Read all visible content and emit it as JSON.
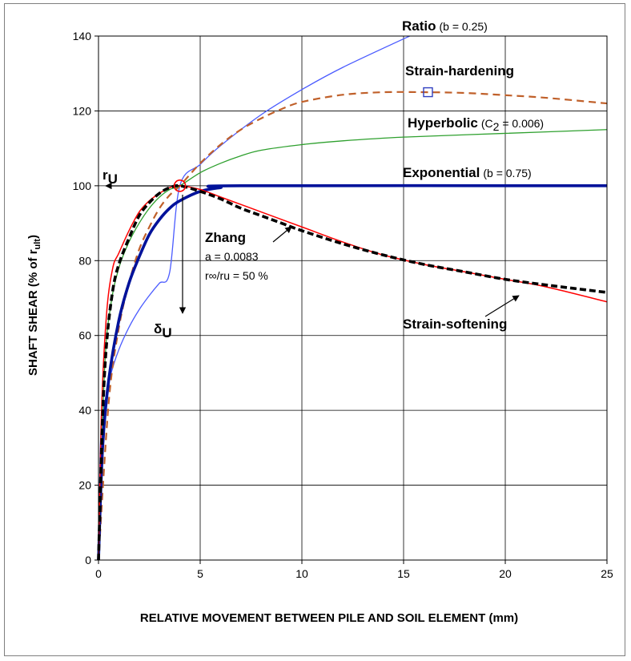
{
  "chart_data": {
    "type": "line",
    "xlabel": "RELATIVE MOVEMENT BETWEEN PILE AND SOIL ELEMENT  (mm)",
    "ylabel_main": "SHAFT SHEAR (% of r",
    "ylabel_sub": "ult",
    "ylabel_end": ")",
    "xlim": [
      0,
      25
    ],
    "ylim": [
      0,
      140
    ],
    "x_ticks": [
      "0",
      "5",
      "10",
      "15",
      "20",
      "25"
    ],
    "y_ticks": [
      "0",
      "20",
      "40",
      "60",
      "80",
      "100",
      "120",
      "140"
    ],
    "grid": true,
    "legend": "none",
    "series": [
      {
        "name": "Ratio (b = 0.25)",
        "color": "#4a5bff",
        "points": [
          [
            0,
            0
          ],
          [
            0.1,
            31.6
          ],
          [
            0.3,
            41.6
          ],
          [
            0.6,
            49.5
          ],
          [
            1,
            56.2
          ],
          [
            1.5,
            62.2
          ],
          [
            2,
            66.9
          ],
          [
            2.5,
            70.7
          ],
          [
            3,
            74.0
          ],
          [
            3.5,
            76.9
          ],
          [
            4,
            100
          ],
          [
            5,
            105.7
          ],
          [
            6,
            110.7
          ],
          [
            8,
            119.0
          ],
          [
            10,
            125.7
          ],
          [
            12,
            131.6
          ],
          [
            15.3,
            140
          ]
        ]
      },
      {
        "name": "Strain-hardening",
        "color": "#c0602a",
        "points": [
          [
            0,
            0
          ],
          [
            0.5,
            42
          ],
          [
            1,
            62
          ],
          [
            1.5,
            74
          ],
          [
            2,
            83
          ],
          [
            2.5,
            89
          ],
          [
            3,
            94
          ],
          [
            3.5,
            97.5
          ],
          [
            4,
            100
          ],
          [
            5,
            106
          ],
          [
            6,
            111
          ],
          [
            7,
            115
          ],
          [
            8,
            118
          ],
          [
            9,
            120.5
          ],
          [
            10,
            122.4
          ],
          [
            12,
            124.3
          ],
          [
            14,
            125
          ],
          [
            16,
            125
          ],
          [
            18,
            124.8
          ],
          [
            20,
            124.2
          ],
          [
            22,
            123.5
          ],
          [
            25,
            122
          ]
        ]
      },
      {
        "name": "Hyperbolic (C2 = 0.006)",
        "color": "#2ea02e",
        "points": [
          [
            0,
            0
          ],
          [
            0.3,
            51
          ],
          [
            0.6,
            68
          ],
          [
            1,
            78
          ],
          [
            1.5,
            85
          ],
          [
            2,
            90
          ],
          [
            2.5,
            94
          ],
          [
            3,
            97
          ],
          [
            3.5,
            99
          ],
          [
            4,
            100
          ],
          [
            5,
            103.5
          ],
          [
            6,
            106
          ],
          [
            7,
            108
          ],
          [
            8,
            109.5
          ],
          [
            10,
            111
          ],
          [
            12,
            112
          ],
          [
            15,
            113
          ],
          [
            20,
            114
          ],
          [
            25,
            115
          ]
        ]
      },
      {
        "name": "Exponential (b = 0.75)",
        "color": "#00129a",
        "points": [
          [
            0,
            0
          ],
          [
            0.2,
            30
          ],
          [
            0.5,
            48
          ],
          [
            1,
            64
          ],
          [
            1.5,
            74
          ],
          [
            2,
            81
          ],
          [
            2.5,
            87
          ],
          [
            3,
            91
          ],
          [
            3.5,
            94
          ],
          [
            4,
            96
          ],
          [
            5,
            98.5
          ],
          [
            6,
            99.5
          ],
          [
            7,
            100
          ],
          [
            25,
            100
          ]
        ]
      },
      {
        "name": "Zhang",
        "color": "#000000",
        "points": [
          [
            0,
            0
          ],
          [
            0.2,
            38
          ],
          [
            0.4,
            58
          ],
          [
            0.7,
            72
          ],
          [
            1,
            79
          ],
          [
            1.5,
            86
          ],
          [
            2,
            92
          ],
          [
            2.5,
            95.5
          ],
          [
            3,
            98
          ],
          [
            3.5,
            99.5
          ],
          [
            4,
            100
          ],
          [
            5,
            98.5
          ],
          [
            6,
            96.5
          ],
          [
            7,
            94
          ],
          [
            8,
            92
          ],
          [
            9,
            90
          ],
          [
            10,
            88
          ],
          [
            12,
            84.5
          ],
          [
            14,
            81.5
          ],
          [
            16,
            79
          ],
          [
            18,
            77
          ],
          [
            20,
            75
          ],
          [
            22,
            73.5
          ],
          [
            25,
            71.5
          ]
        ]
      },
      {
        "name": "Strain-softening",
        "color": "#ff0000",
        "points": [
          [
            0,
            0
          ],
          [
            0.15,
            40
          ],
          [
            0.4,
            66
          ],
          [
            0.7,
            78
          ],
          [
            1,
            82
          ],
          [
            1.5,
            88
          ],
          [
            2,
            93
          ],
          [
            2.5,
            96
          ],
          [
            3,
            98
          ],
          [
            3.5,
            99.5
          ],
          [
            4,
            100
          ],
          [
            5,
            99
          ],
          [
            6,
            97
          ],
          [
            7,
            95
          ],
          [
            8,
            93
          ],
          [
            10,
            89
          ],
          [
            12,
            85
          ],
          [
            14,
            81.5
          ],
          [
            16,
            79
          ],
          [
            18,
            77
          ],
          [
            20,
            75
          ],
          [
            22,
            73
          ],
          [
            25,
            69
          ]
        ]
      }
    ],
    "markers": {
      "peak": {
        "x": 4,
        "y": 100,
        "color": "#ff0000"
      },
      "hardening_peak": {
        "x": 16.2,
        "y": 125,
        "color": "#3040c0",
        "border": "#c0602a"
      }
    },
    "labels": {
      "ratio_main": "Ratio",
      "ratio_param": "(b = 0.25)",
      "hardening": "Strain-hardening",
      "hyperbolic_main": "Hyperbolic",
      "hyperbolic_param_pre": "(C",
      "hyperbolic_param_sub": "2",
      "hyperbolic_param_post": " = 0.006)",
      "exponential_main": "Exponential",
      "exponential_param": "(b = 0.75)",
      "zhang_main": "Zhang",
      "zhang_a": "a = 0.0083",
      "zhang_ratio": "r∞/ru = 50 %",
      "softening": "Strain-softening",
      "ru_main": "r",
      "ru_sub": "U",
      "du_main": "δ",
      "du_sub": "U"
    }
  }
}
